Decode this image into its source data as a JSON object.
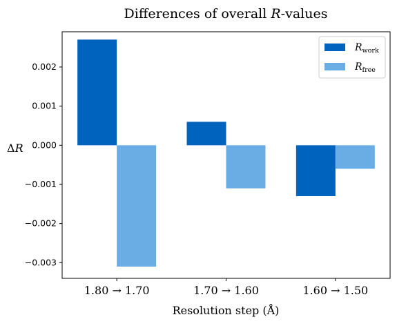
{
  "chart_data": {
    "type": "bar",
    "title": "Differences of overall R-values",
    "xlabel": "Resolution step (Å)",
    "ylabel": "ΔR",
    "categories": [
      "1.80 → 1.70",
      "1.70 → 1.60",
      "1.60 → 1.50"
    ],
    "series": [
      {
        "name": "R_work",
        "name_main": "R",
        "name_sub": "work",
        "color": "#0063be",
        "values": [
          0.0027,
          0.0006,
          -0.0013
        ]
      },
      {
        "name": "R_free",
        "name_main": "R",
        "name_sub": "free",
        "color": "#6aade5",
        "values": [
          -0.0031,
          -0.0011,
          -0.0006
        ]
      }
    ],
    "ylim": [
      -0.0034,
      0.0029
    ],
    "yticks": [
      0.002,
      0.001,
      0.0,
      -0.001,
      -0.002,
      -0.003
    ],
    "ytick_labels": [
      "0.002",
      "0.001",
      "0.000",
      "−0.001",
      "−0.002",
      "−0.003"
    ],
    "grid": false,
    "legend": "top-right"
  }
}
